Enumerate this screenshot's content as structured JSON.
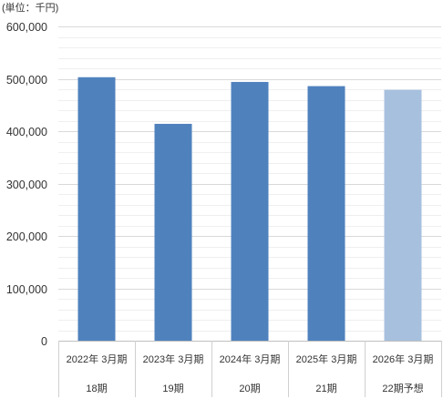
{
  "chart_data": {
    "type": "bar",
    "unit_label": "(単位：千円)",
    "categories": [
      "2022年 3月期",
      "2023年 3月期",
      "2024年 3月期",
      "2025年 3月期",
      "2026年 3月期"
    ],
    "sub_categories": [
      "18期",
      "19期",
      "20期",
      "21期",
      "22期予想"
    ],
    "values": [
      503000,
      414000,
      494000,
      486000,
      479000
    ],
    "forecast": [
      false,
      false,
      false,
      false,
      true
    ],
    "yticks": [
      "0",
      "100,000",
      "200,000",
      "300,000",
      "400,000",
      "500,000",
      "600,000"
    ],
    "ylim": [
      0,
      600000
    ],
    "colors": {
      "actual": "#4f81bd",
      "forecast": "#a7c0de",
      "grid": "#d9d9d9",
      "minor_grid": "#efefef"
    },
    "grid": true,
    "legend": "none"
  }
}
